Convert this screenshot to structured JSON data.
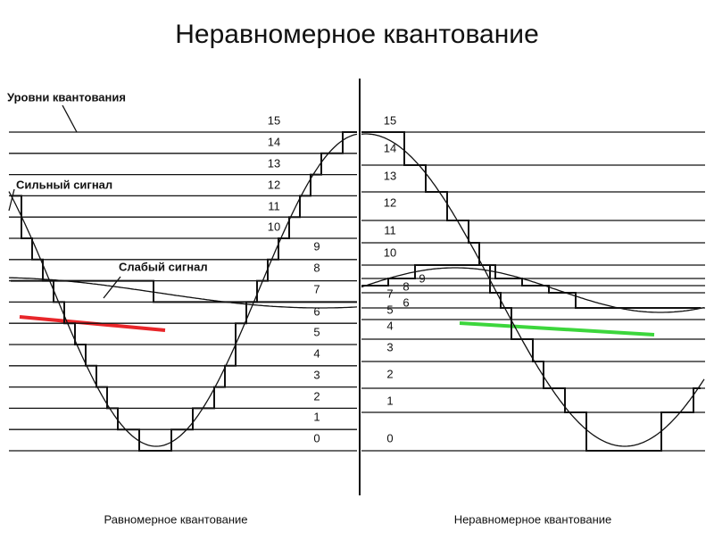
{
  "title": "Неравномерное квантование",
  "labels": {
    "levels": "Уровни квантования",
    "strong": "Сильный сигнал",
    "weak": "Слабый сигнал"
  },
  "left": {
    "caption": "Равномерное квантование",
    "levels": [
      "0",
      "1",
      "2",
      "3",
      "4",
      "5",
      "6",
      "7",
      "8",
      "9",
      "10",
      "11",
      "12",
      "13",
      "14",
      "15"
    ]
  },
  "right": {
    "caption": "Неравномерное квантование",
    "levels": [
      "0",
      "1",
      "2",
      "3",
      "4",
      "5",
      "6",
      "7",
      "8",
      "9",
      "10",
      "11",
      "12",
      "13",
      "14",
      "15"
    ]
  }
}
